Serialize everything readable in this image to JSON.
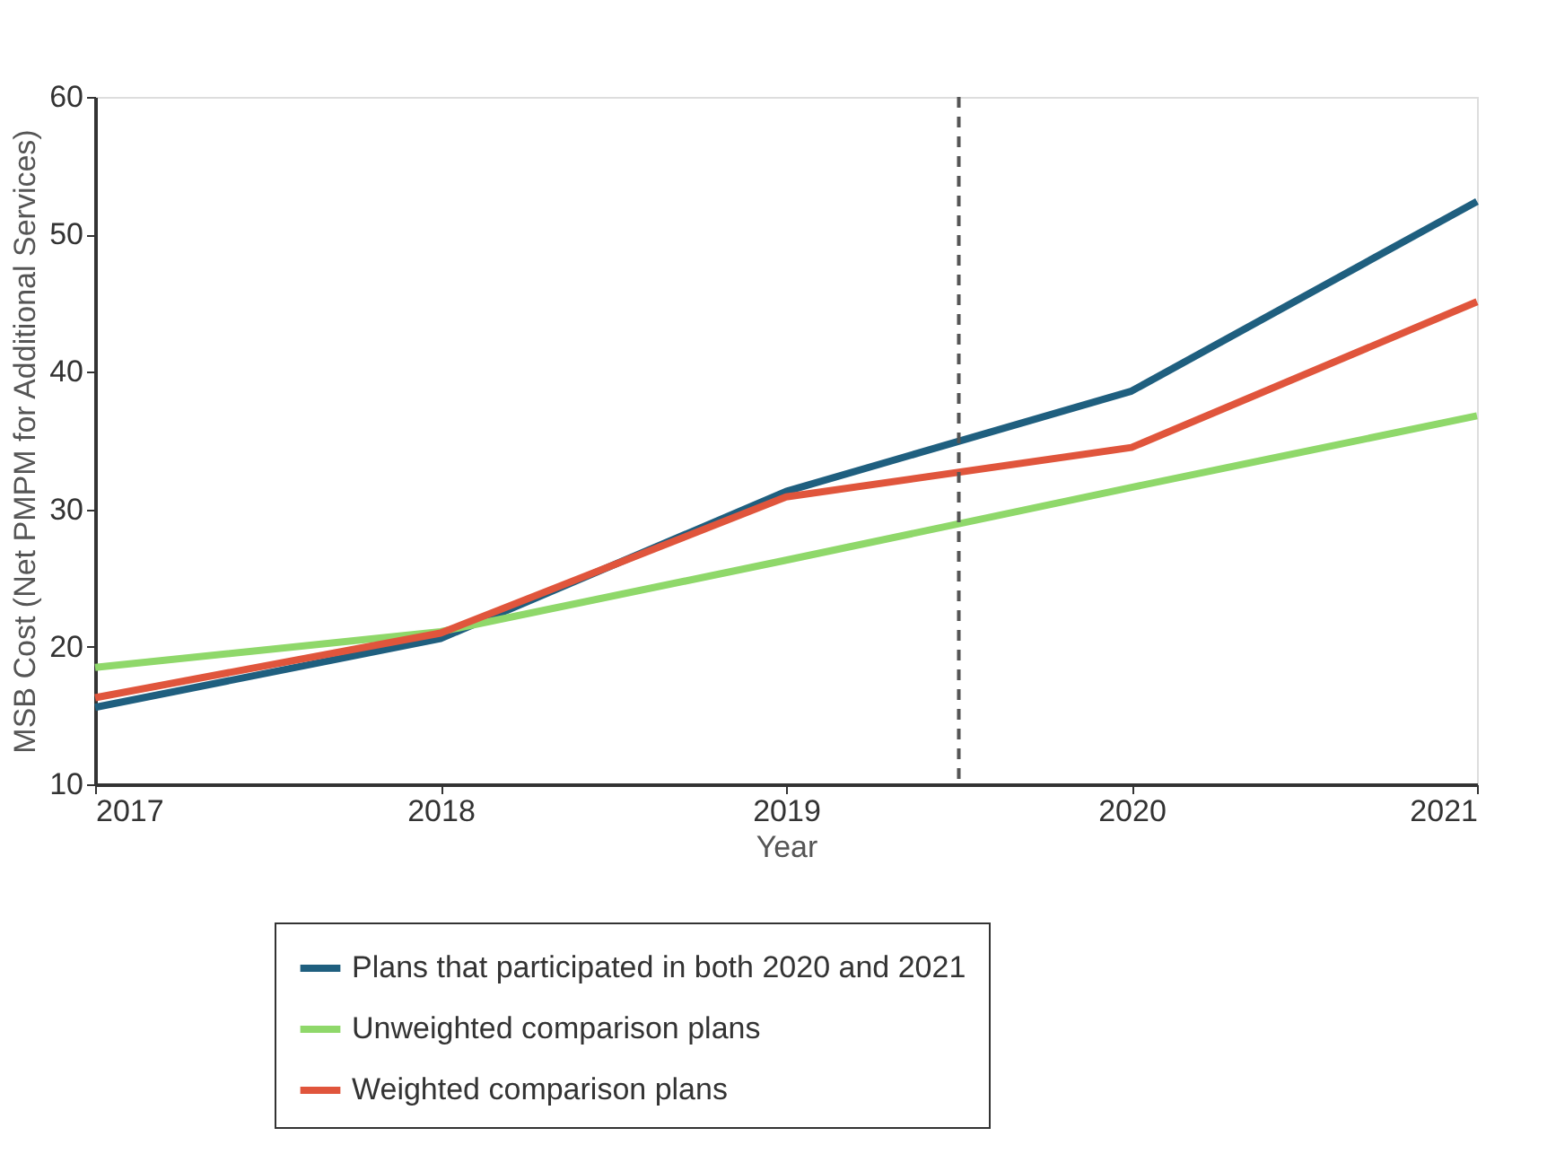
{
  "chart_data": {
    "type": "line",
    "xlabel": "Year",
    "ylabel": "MSB Cost (Net PMPM for Additional Services)",
    "x": [
      2017,
      2018,
      2019,
      2020,
      2021
    ],
    "series": [
      {
        "name": "Plans that participated in both 2020 and 2021",
        "color": "#1f5f7f",
        "values": [
          15.6,
          20.6,
          31.3,
          38.6,
          52.4
        ]
      },
      {
        "name": "Unweighted comparison plans",
        "color": "#8fd86a",
        "values": [
          18.5,
          21.1,
          26.3,
          31.6,
          36.8
        ]
      },
      {
        "name": "Weighted comparison plans",
        "color": "#e0553c",
        "values": [
          16.3,
          21.0,
          30.9,
          34.5,
          45.1
        ]
      }
    ],
    "xlim": [
      2017,
      2021
    ],
    "xticks": [
      2017,
      2018,
      2019,
      2020,
      2021
    ],
    "ylim": [
      10,
      60
    ],
    "yticks": [
      10,
      20,
      30,
      40,
      50,
      60
    ],
    "ref_lines": [
      {
        "axis": "x",
        "value": 2019.5,
        "color": "#555555",
        "line_style": "dashed"
      }
    ],
    "grid": false,
    "legend": "bottom",
    "marker": "none",
    "line_style": "solid"
  }
}
